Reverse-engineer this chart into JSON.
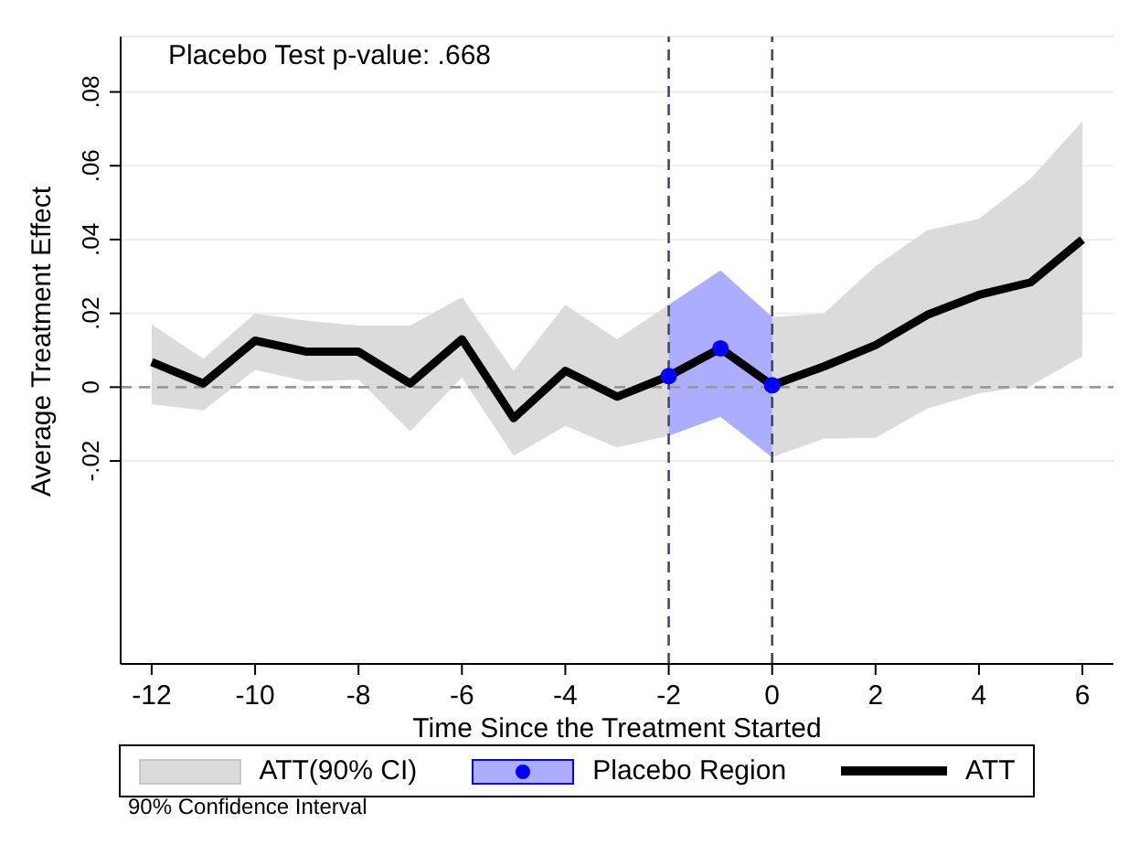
{
  "chart_data": {
    "type": "line",
    "xlabel": "Time Since the Treatment Started",
    "ylabel": "Average Treatment Effect",
    "annotations": [
      "Placebo Test p-value: .668",
      "90% Confidence Interval",
      "ATT(90% CI)"
    ],
    "x": [
      -12,
      -11,
      -10,
      -9,
      -8,
      -7,
      -6,
      -5,
      -4,
      -3,
      -2,
      -1,
      0,
      1,
      2,
      3,
      4,
      5,
      6
    ],
    "series": [
      {
        "name": "ATT",
        "color": "#000000",
        "values": [
          0.0068,
          0.001,
          0.0126,
          0.0096,
          0.0096,
          0.001,
          0.013,
          -0.0084,
          0.0044,
          -0.0026,
          0.003,
          0.0105,
          0.0005,
          0.0056,
          0.0114,
          0.0196,
          0.025,
          0.0284,
          0.04
        ],
        "lower": [
          -0.0046,
          -0.0063,
          0.0047,
          0.0016,
          0.002,
          -0.012,
          0.0026,
          -0.0186,
          -0.0105,
          -0.0163,
          -0.0132,
          -0.008,
          -0.019,
          -0.014,
          -0.0137,
          -0.0058,
          -0.0017,
          0.0004,
          0.0083
        ],
        "upper": [
          0.017,
          0.0077,
          0.02,
          0.018,
          0.0167,
          0.0167,
          0.0244,
          0.0044,
          0.0223,
          0.013,
          0.0223,
          0.0316,
          0.019,
          0.02,
          0.0328,
          0.0425,
          0.0456,
          0.0565,
          0.072
        ]
      },
      {
        "name": "Placebo Region",
        "type": "scatter",
        "color": "#0000ff",
        "x": [
          -2,
          -1,
          0
        ],
        "values": [
          0.003,
          0.0105,
          0.0005
        ],
        "lower": [
          -0.0132,
          -0.008,
          -0.019
        ],
        "upper": [
          0.0223,
          0.0316,
          0.019
        ]
      }
    ],
    "xlim": [
      -12.6,
      6.6
    ],
    "xticks": [
      -12,
      -10,
      -8,
      -6,
      -4,
      -2,
      0,
      2,
      4,
      6
    ],
    "ylim": [
      -0.075,
      0.095
    ],
    "yticks": [
      {
        "value": -0.02,
        "label": "-.02"
      },
      {
        "value": 0,
        "label": "0"
      },
      {
        "value": 0.02,
        "label": ".02"
      },
      {
        "value": 0.04,
        "label": ".04"
      },
      {
        "value": 0.06,
        "label": ".06"
      },
      {
        "value": 0.08,
        "label": ".08"
      }
    ],
    "ref_lines": [
      {
        "axis": "y",
        "value": 0,
        "color": "#999999",
        "line_style": "dashed"
      },
      {
        "axis": "x",
        "value": -2,
        "color": "#3c4a6b",
        "line_style": "dashed"
      },
      {
        "axis": "x",
        "value": 0,
        "color": "#3c4a6b",
        "line_style": "dashed"
      }
    ],
    "grid": "y",
    "legend": "bottom"
  }
}
